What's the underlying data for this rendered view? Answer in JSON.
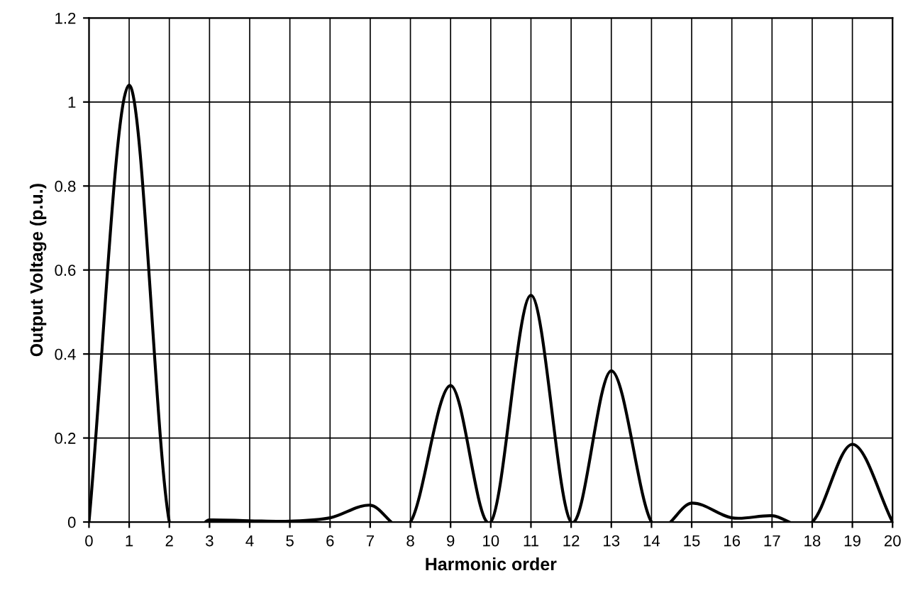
{
  "chart_data": {
    "type": "line",
    "xlabel": "Harmonic order",
    "ylabel": "Output Voltage (p.u.)",
    "x": [
      0,
      1,
      2,
      3,
      4,
      5,
      6,
      7,
      8,
      9,
      10,
      11,
      12,
      13,
      14,
      15,
      16,
      17,
      18,
      19,
      20
    ],
    "series": [
      {
        "color": "#000000",
        "values": [
          0,
          1.04,
          0,
          0.005,
          0.003,
          0.002,
          0.01,
          0.04,
          0,
          0.325,
          0,
          0.54,
          0,
          0.36,
          0,
          0.045,
          0.01,
          0.015,
          0,
          0.185,
          0
        ]
      }
    ],
    "xlim": [
      0,
      20
    ],
    "xticks": [
      0,
      1,
      2,
      3,
      4,
      5,
      6,
      7,
      8,
      9,
      10,
      11,
      12,
      13,
      14,
      15,
      16,
      17,
      18,
      19,
      20
    ],
    "ylim": [
      0,
      1.2
    ],
    "yticks": [
      0,
      0.2,
      0.4,
      0.6,
      0.8,
      1,
      1.2
    ],
    "grid": true,
    "marker": "none",
    "line_style": "solid"
  }
}
